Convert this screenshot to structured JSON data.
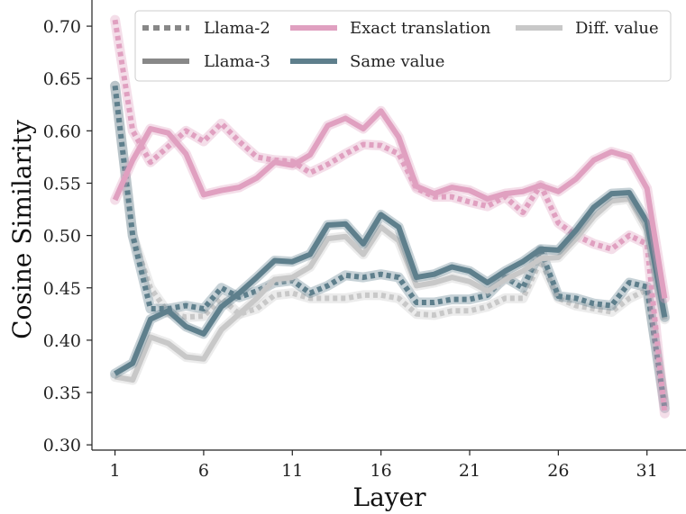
{
  "chart_data": {
    "type": "line",
    "title": "",
    "xlabel": "Layer",
    "ylabel": "Cosine Similarity",
    "xlim": [
      -0.3,
      33.2
    ],
    "ylim": [
      0.295,
      0.725
    ],
    "xticks": [
      1,
      6,
      11,
      16,
      21,
      26,
      31
    ],
    "yticks": [
      0.3,
      0.35,
      0.4,
      0.45,
      0.5,
      0.55,
      0.6,
      0.65,
      0.7
    ],
    "ytick_labels": [
      "0.30",
      "0.35",
      "0.40",
      "0.45",
      "0.50",
      "0.55",
      "0.60",
      "0.65",
      "0.70"
    ],
    "grid": false,
    "legend_position": "top",
    "legend": [
      {
        "label": "Llama-2",
        "kind": "dashed",
        "color": "#888888"
      },
      {
        "label": "Llama-3",
        "kind": "solid",
        "color": "#888888"
      },
      {
        "label": "Exact translation",
        "kind": "solid",
        "color": "#e0a0c0"
      },
      {
        "label": "Same value",
        "kind": "solid",
        "color": "#5e7f8c"
      },
      {
        "label": "Diff. value",
        "kind": "solid",
        "color": "#c8c8c8"
      }
    ],
    "x": [
      1,
      2,
      3,
      4,
      5,
      6,
      7,
      8,
      9,
      10,
      11,
      12,
      13,
      14,
      15,
      16,
      17,
      18,
      19,
      20,
      21,
      22,
      23,
      24,
      25,
      26,
      27,
      28,
      29,
      30,
      31,
      32
    ],
    "series": [
      {
        "name": "Llama-2 Exact translation",
        "model": "Llama-2",
        "type": "Exact translation",
        "dash": true,
        "color": "#e0a0c0",
        "values": [
          0.706,
          0.6,
          0.57,
          0.585,
          0.6,
          0.59,
          0.607,
          0.59,
          0.575,
          0.572,
          0.571,
          0.56,
          0.568,
          0.578,
          0.587,
          0.586,
          0.578,
          0.545,
          0.537,
          0.537,
          0.532,
          0.528,
          0.537,
          0.522,
          0.548,
          0.512,
          0.5,
          0.492,
          0.487,
          0.5,
          0.492,
          0.33
        ]
      },
      {
        "name": "Llama-2 Diff. value",
        "model": "Llama-2",
        "type": "Diff. value",
        "dash": true,
        "color": "#c8c8c8",
        "values": [
          0.643,
          0.5,
          0.45,
          0.426,
          0.422,
          0.423,
          0.44,
          0.425,
          0.43,
          0.443,
          0.445,
          0.44,
          0.44,
          0.44,
          0.443,
          0.443,
          0.44,
          0.425,
          0.424,
          0.428,
          0.428,
          0.432,
          0.44,
          0.44,
          0.476,
          0.44,
          0.433,
          0.43,
          0.427,
          0.44,
          0.448,
          0.34
        ]
      },
      {
        "name": "Llama-2 Same value",
        "model": "Llama-2",
        "type": "Same value",
        "dash": true,
        "color": "#5e7f8c",
        "values": [
          0.643,
          0.5,
          0.43,
          0.43,
          0.433,
          0.43,
          0.45,
          0.441,
          0.447,
          0.455,
          0.457,
          0.445,
          0.452,
          0.462,
          0.46,
          0.463,
          0.46,
          0.436,
          0.436,
          0.439,
          0.439,
          0.443,
          0.46,
          0.45,
          0.486,
          0.442,
          0.44,
          0.435,
          0.433,
          0.455,
          0.451,
          0.335
        ]
      },
      {
        "name": "Llama-3 Exact translation",
        "model": "Llama-3",
        "type": "Exact translation",
        "dash": false,
        "color": "#e0a0c0",
        "values": [
          0.534,
          0.572,
          0.602,
          0.598,
          0.578,
          0.539,
          0.543,
          0.546,
          0.555,
          0.57,
          0.567,
          0.577,
          0.605,
          0.612,
          0.602,
          0.619,
          0.594,
          0.547,
          0.54,
          0.546,
          0.543,
          0.535,
          0.54,
          0.542,
          0.548,
          0.542,
          0.554,
          0.572,
          0.58,
          0.575,
          0.545,
          0.44
        ]
      },
      {
        "name": "Llama-3 Same value",
        "model": "Llama-3",
        "type": "Same value",
        "dash": false,
        "color": "#5e7f8c",
        "values": [
          0.368,
          0.378,
          0.42,
          0.428,
          0.413,
          0.406,
          0.432,
          0.445,
          0.46,
          0.476,
          0.475,
          0.482,
          0.51,
          0.511,
          0.492,
          0.52,
          0.508,
          0.46,
          0.463,
          0.47,
          0.466,
          0.455,
          0.466,
          0.475,
          0.487,
          0.486,
          0.505,
          0.527,
          0.54,
          0.541,
          0.513,
          0.422
        ]
      },
      {
        "name": "Llama-3 Diff. value",
        "model": "Llama-3",
        "type": "Diff. value",
        "dash": false,
        "color": "#c8c8c8",
        "values": [
          0.365,
          0.362,
          0.403,
          0.397,
          0.384,
          0.382,
          0.41,
          0.425,
          0.44,
          0.458,
          0.46,
          0.47,
          0.497,
          0.499,
          0.482,
          0.508,
          0.495,
          0.452,
          0.455,
          0.46,
          0.456,
          0.447,
          0.458,
          0.466,
          0.478,
          0.479,
          0.497,
          0.518,
          0.533,
          0.535,
          0.505,
          0.42
        ]
      }
    ]
  }
}
